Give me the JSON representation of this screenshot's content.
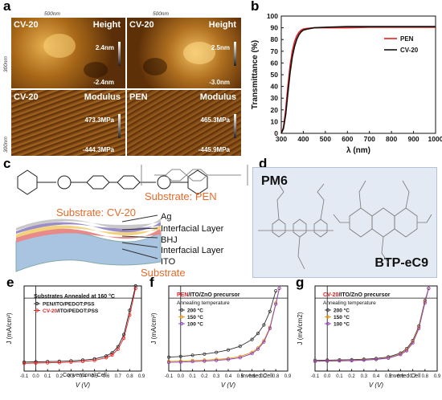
{
  "panel_a": {
    "label": "a",
    "scale_bar_top": "500nm",
    "scale_bar_side": "300nm",
    "tiles": [
      {
        "sample": "CV-20",
        "mode": "Height",
        "max": "2.4nm",
        "min": "-2.4nm"
      },
      {
        "sample": "CV-20",
        "mode": "Height",
        "max": "2.5nm",
        "min": "-3.0nm"
      },
      {
        "sample": "CV-20",
        "mode": "Modulus",
        "max": "473.3MPa",
        "min": "-444.3MPa"
      },
      {
        "sample": "PEN",
        "mode": "Modulus",
        "max": "465.3MPa",
        "min": "-445.9MPa"
      }
    ]
  },
  "panel_b": {
    "label": "b",
    "chart_data": {
      "type": "line",
      "xlabel": "λ (nm)",
      "ylabel": "Transmittance (%)",
      "xlim": [
        300,
        1000
      ],
      "ylim": [
        0,
        100
      ],
      "xticks": [
        300,
        400,
        500,
        600,
        700,
        800,
        900,
        1000
      ],
      "yticks": [
        0,
        10,
        20,
        30,
        40,
        50,
        60,
        70,
        80,
        90,
        100
      ],
      "legend": "top-right",
      "series": [
        {
          "name": "PEN",
          "color": "#e02020",
          "x": [
            300,
            310,
            320,
            330,
            340,
            350,
            360,
            370,
            380,
            390,
            400,
            420,
            450,
            500,
            600,
            700,
            800,
            900,
            1000
          ],
          "y": [
            0,
            5,
            20,
            40,
            58,
            70,
            78,
            83,
            86,
            88,
            89,
            89.5,
            90,
            90,
            90,
            90.5,
            90.5,
            90.5,
            90.5
          ]
        },
        {
          "name": "CV-20",
          "color": "#111111",
          "x": [
            300,
            310,
            320,
            330,
            340,
            350,
            360,
            370,
            380,
            390,
            400,
            420,
            450,
            500,
            600,
            700,
            800,
            900,
            1000
          ],
          "y": [
            0,
            4,
            16,
            34,
            52,
            65,
            74,
            80,
            84,
            86.5,
            88,
            89,
            90,
            90.5,
            91,
            91,
            91,
            91,
            91
          ]
        }
      ]
    }
  },
  "panel_c": {
    "label": "c",
    "substrate_cv20": "Substrate: CV-20",
    "substrate_pen": "Substrate: PEN",
    "layers": [
      "Ag",
      "Interfacial Layer",
      "BHJ",
      "Interfacial Layer",
      "ITO",
      "Substrate"
    ]
  },
  "panel_d": {
    "label": "d",
    "donor": "PM6",
    "acceptor": "BTP-eC9"
  },
  "panel_e": {
    "label": "e",
    "legend_title": "Substrates Annealed at 160 °C",
    "note": "Conventional Cell",
    "chart_data": {
      "type": "line",
      "xlabel": "V (V)",
      "ylabel": "J (mA/cm²)",
      "xlim": [
        -0.1,
        0.9
      ],
      "ylim": [
        -30,
        5
      ],
      "xticks": [
        "-0.1",
        "0.0",
        "0.1",
        "0.2",
        "0.3",
        "0.4",
        "0.5",
        "0.6",
        "0.7",
        "0.8",
        "0.9"
      ],
      "series": [
        {
          "name": "PEN/ITO/PEDOT:PSS",
          "color": "#222222",
          "x": [
            -0.1,
            0.0,
            0.1,
            0.2,
            0.3,
            0.4,
            0.5,
            0.6,
            0.65,
            0.7,
            0.75,
            0.8,
            0.85
          ],
          "y": [
            -26.3,
            -26.2,
            -26.1,
            -26.0,
            -25.8,
            -25.5,
            -25.0,
            -23.8,
            -22.5,
            -20.0,
            -15.0,
            -5.0,
            5
          ]
        },
        {
          "name": "CV-20/ITO/PEDOT:PSS",
          "color": "#e02020",
          "x": [
            -0.1,
            0.0,
            0.1,
            0.2,
            0.3,
            0.4,
            0.5,
            0.6,
            0.65,
            0.7,
            0.75,
            0.8,
            0.85
          ],
          "y": [
            -26.8,
            -26.7,
            -26.6,
            -26.5,
            -26.3,
            -26.0,
            -25.6,
            -24.5,
            -23.4,
            -21.0,
            -16.5,
            -7.0,
            4
          ]
        }
      ]
    }
  },
  "panel_f": {
    "label": "f",
    "title_sub": "PEN",
    "title_rest": "/ITO/ZnO precursor",
    "legend_title": "Annealing temperature",
    "note": "Inverted Cell",
    "chart_data": {
      "type": "line",
      "xlabel": "V (V)",
      "ylabel": "J (mA/cm²)",
      "xlim": [
        -0.1,
        0.9
      ],
      "ylim": [
        -30,
        5
      ],
      "xticks": [
        "-0.1",
        "0.0",
        "0.1",
        "0.2",
        "0.3",
        "0.4",
        "0.5",
        "0.6",
        "0.7",
        "0.8",
        "0.9"
      ],
      "series": [
        {
          "name": "200 °C",
          "color": "#333333",
          "x": [
            -0.1,
            0.0,
            0.1,
            0.2,
            0.3,
            0.4,
            0.5,
            0.6,
            0.65,
            0.7,
            0.75,
            0.8
          ],
          "y": [
            -24.3,
            -24.0,
            -23.5,
            -23.0,
            -22.3,
            -21.3,
            -19.8,
            -17.0,
            -14.5,
            -11.0,
            -5.5,
            3
          ]
        },
        {
          "name": "150 °C",
          "color": "#e8940a",
          "x": [
            -0.1,
            0.0,
            0.1,
            0.2,
            0.3,
            0.4,
            0.5,
            0.6,
            0.65,
            0.7,
            0.75,
            0.8,
            0.83
          ],
          "y": [
            -26.0,
            -25.9,
            -25.7,
            -25.5,
            -25.2,
            -24.8,
            -24.0,
            -22.3,
            -20.5,
            -17.5,
            -12.0,
            -2.0,
            4
          ]
        },
        {
          "name": "100 °C",
          "color": "#8a3db8",
          "x": [
            -0.1,
            0.0,
            0.1,
            0.2,
            0.3,
            0.4,
            0.5,
            0.6,
            0.65,
            0.7,
            0.75,
            0.8,
            0.83
          ],
          "y": [
            -26.4,
            -26.3,
            -26.1,
            -25.9,
            -25.6,
            -25.2,
            -24.5,
            -22.8,
            -21.0,
            -18.0,
            -12.5,
            -2.5,
            4
          ]
        }
      ]
    }
  },
  "panel_g": {
    "label": "g",
    "title_sub": "CV-20",
    "title_rest": "/ITO/ZnO precursor",
    "legend_title": "Annealing temperature",
    "note": "Inverted Cell",
    "chart_data": {
      "type": "line",
      "xlabel": "V (V)",
      "ylabel": "J (mA/cm2)",
      "xlim": [
        -0.1,
        0.9
      ],
      "ylim": [
        -30,
        5
      ],
      "xticks": [
        "-0.1",
        "0.0",
        "0.1",
        "0.2",
        "0.3",
        "0.4",
        "0.5",
        "0.6",
        "0.7",
        "0.8",
        "0.9"
      ],
      "series": [
        {
          "name": "200 °C",
          "color": "#333333",
          "x": [
            -0.1,
            0.0,
            0.1,
            0.2,
            0.3,
            0.4,
            0.5,
            0.6,
            0.65,
            0.7,
            0.75,
            0.8,
            0.83
          ],
          "y": [
            -25.6,
            -25.5,
            -25.4,
            -25.3,
            -25.1,
            -24.8,
            -24.2,
            -22.6,
            -20.8,
            -17.5,
            -11.5,
            -1.0,
            4
          ]
        },
        {
          "name": "150 °C",
          "color": "#e8940a",
          "x": [
            -0.1,
            0.0,
            0.1,
            0.2,
            0.3,
            0.4,
            0.5,
            0.6,
            0.65,
            0.7,
            0.75,
            0.8,
            0.83
          ],
          "y": [
            -25.9,
            -25.8,
            -25.7,
            -25.6,
            -25.4,
            -25.1,
            -24.6,
            -23.0,
            -21.3,
            -18.0,
            -12.0,
            -1.5,
            4
          ]
        },
        {
          "name": "100 °C",
          "color": "#8a3db8",
          "x": [
            -0.1,
            0.0,
            0.1,
            0.2,
            0.3,
            0.4,
            0.5,
            0.6,
            0.65,
            0.7,
            0.75,
            0.8,
            0.83
          ],
          "y": [
            -26.0,
            -25.9,
            -25.8,
            -25.7,
            -25.5,
            -25.2,
            -24.7,
            -23.2,
            -21.6,
            -18.5,
            -12.5,
            -2.0,
            4
          ]
        }
      ]
    }
  }
}
